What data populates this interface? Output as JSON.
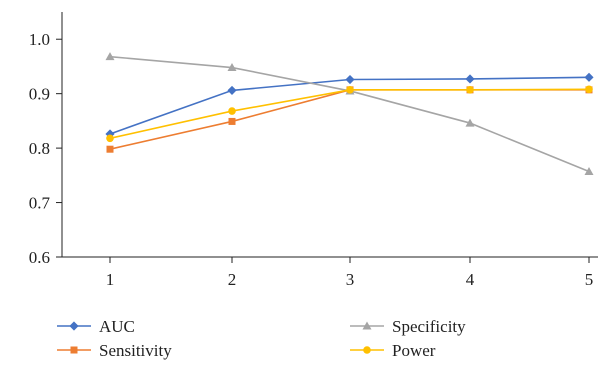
{
  "chart_data": {
    "type": "line",
    "title": "",
    "xlabel": "",
    "ylabel": "",
    "x": [
      1,
      2,
      3,
      4,
      5
    ],
    "x_tick_labels": [
      "1",
      "2",
      "3",
      "4",
      "5"
    ],
    "ylim": [
      0.6,
      1.05
    ],
    "y_ticks": [
      0.6,
      0.7,
      0.8,
      0.9,
      1.0
    ],
    "y_tick_labels": [
      "0.6",
      "0.7",
      "0.8",
      "0.9",
      "1.0"
    ],
    "grid": false,
    "legend_position": "bottom",
    "series": [
      {
        "name": "AUC",
        "values": [
          0.826,
          0.906,
          0.926,
          0.927,
          0.93
        ],
        "color": "#4472C4",
        "marker": "diamond"
      },
      {
        "name": "Sensitivity",
        "values": [
          0.798,
          0.849,
          0.907,
          0.907,
          0.907
        ],
        "color": "#ED7D31",
        "marker": "square"
      },
      {
        "name": "Specificity",
        "values": [
          0.968,
          0.948,
          0.905,
          0.846,
          0.757
        ],
        "color": "#A5A5A5",
        "marker": "triangle"
      },
      {
        "name": "Power",
        "values": [
          0.818,
          0.868,
          0.907,
          0.907,
          0.908
        ],
        "color": "#FFC000",
        "marker": "circle"
      }
    ]
  }
}
